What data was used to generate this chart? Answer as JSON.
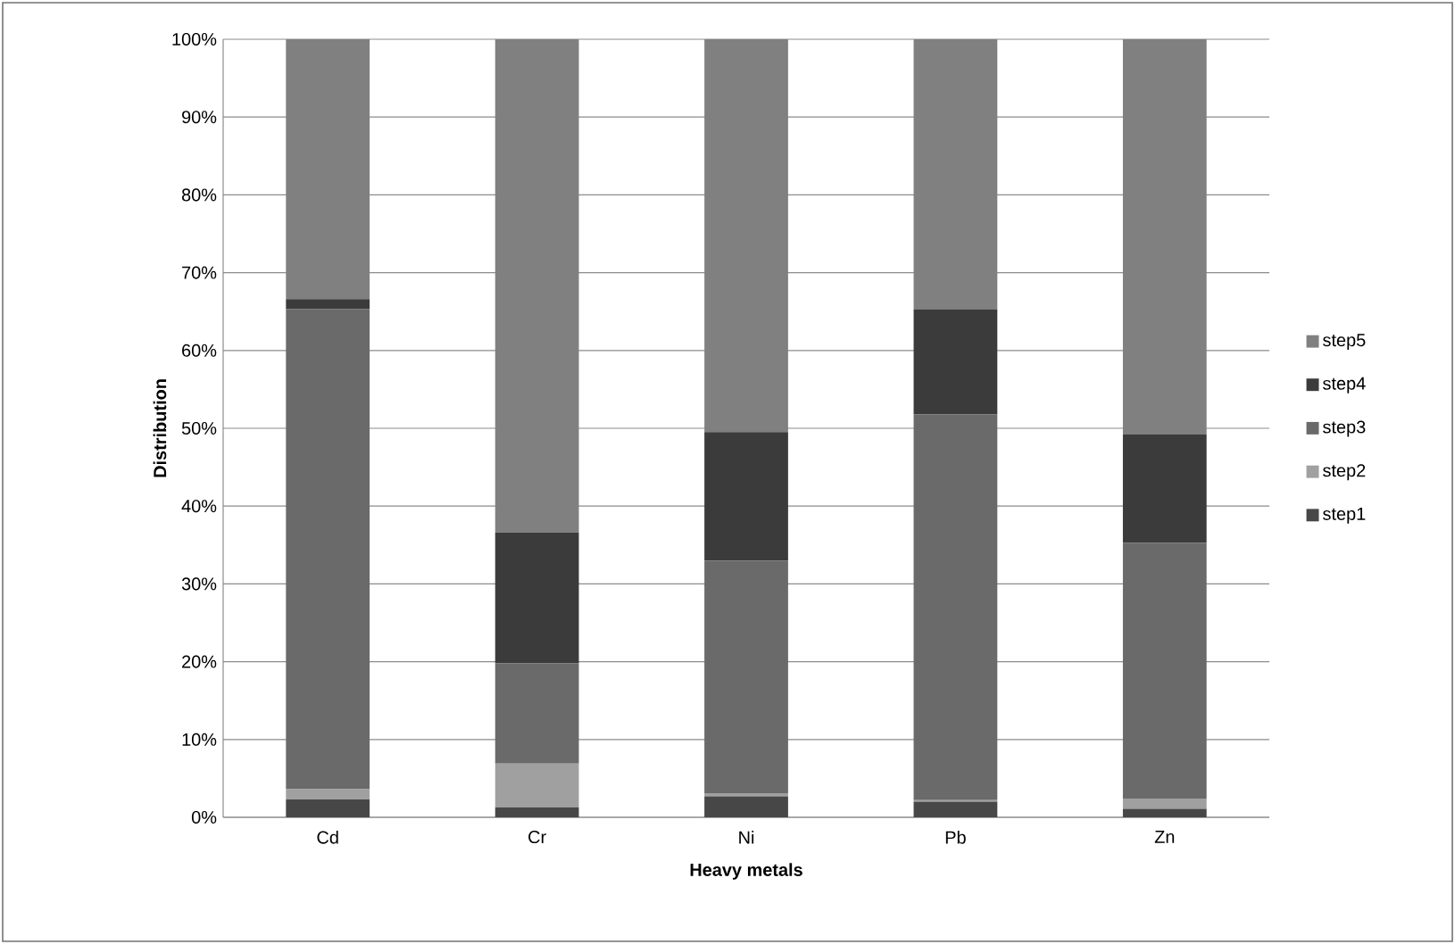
{
  "chart_data": {
    "type": "bar",
    "stacked": true,
    "xlabel": "Heavy metals",
    "ylabel": "Distribution",
    "categories": [
      "Cd",
      "Cr",
      "Ni",
      "Pb",
      "Zn"
    ],
    "series": [
      {
        "name": "step1",
        "color": "#474747",
        "values": [
          2.3,
          1.3,
          2.7,
          2.0,
          1.1
        ]
      },
      {
        "name": "step2",
        "color": "#a0a0a0",
        "values": [
          1.3,
          5.6,
          0.4,
          0.2,
          1.3
        ]
      },
      {
        "name": "step3",
        "color": "#6a6a6a",
        "values": [
          61.7,
          12.9,
          29.9,
          49.6,
          32.9
        ]
      },
      {
        "name": "step4",
        "color": "#3b3b3b",
        "values": [
          1.3,
          16.8,
          16.5,
          13.5,
          13.9
        ]
      },
      {
        "name": "step5",
        "color": "#808080",
        "values": [
          33.4,
          63.4,
          50.5,
          34.7,
          50.8
        ]
      }
    ],
    "ylim": [
      0,
      100
    ],
    "yticks": [
      {
        "value": 0,
        "label": "0%"
      },
      {
        "value": 10,
        "label": "10%"
      },
      {
        "value": 20,
        "label": "20%"
      },
      {
        "value": 30,
        "label": "30%"
      },
      {
        "value": 40,
        "label": "40%"
      },
      {
        "value": 50,
        "label": "50%"
      },
      {
        "value": 60,
        "label": "60%"
      },
      {
        "value": 70,
        "label": "70%"
      },
      {
        "value": 80,
        "label": "80%"
      },
      {
        "value": 90,
        "label": "90%"
      },
      {
        "value": 100,
        "label": "100%"
      }
    ],
    "grid": "y",
    "legend": "right"
  }
}
